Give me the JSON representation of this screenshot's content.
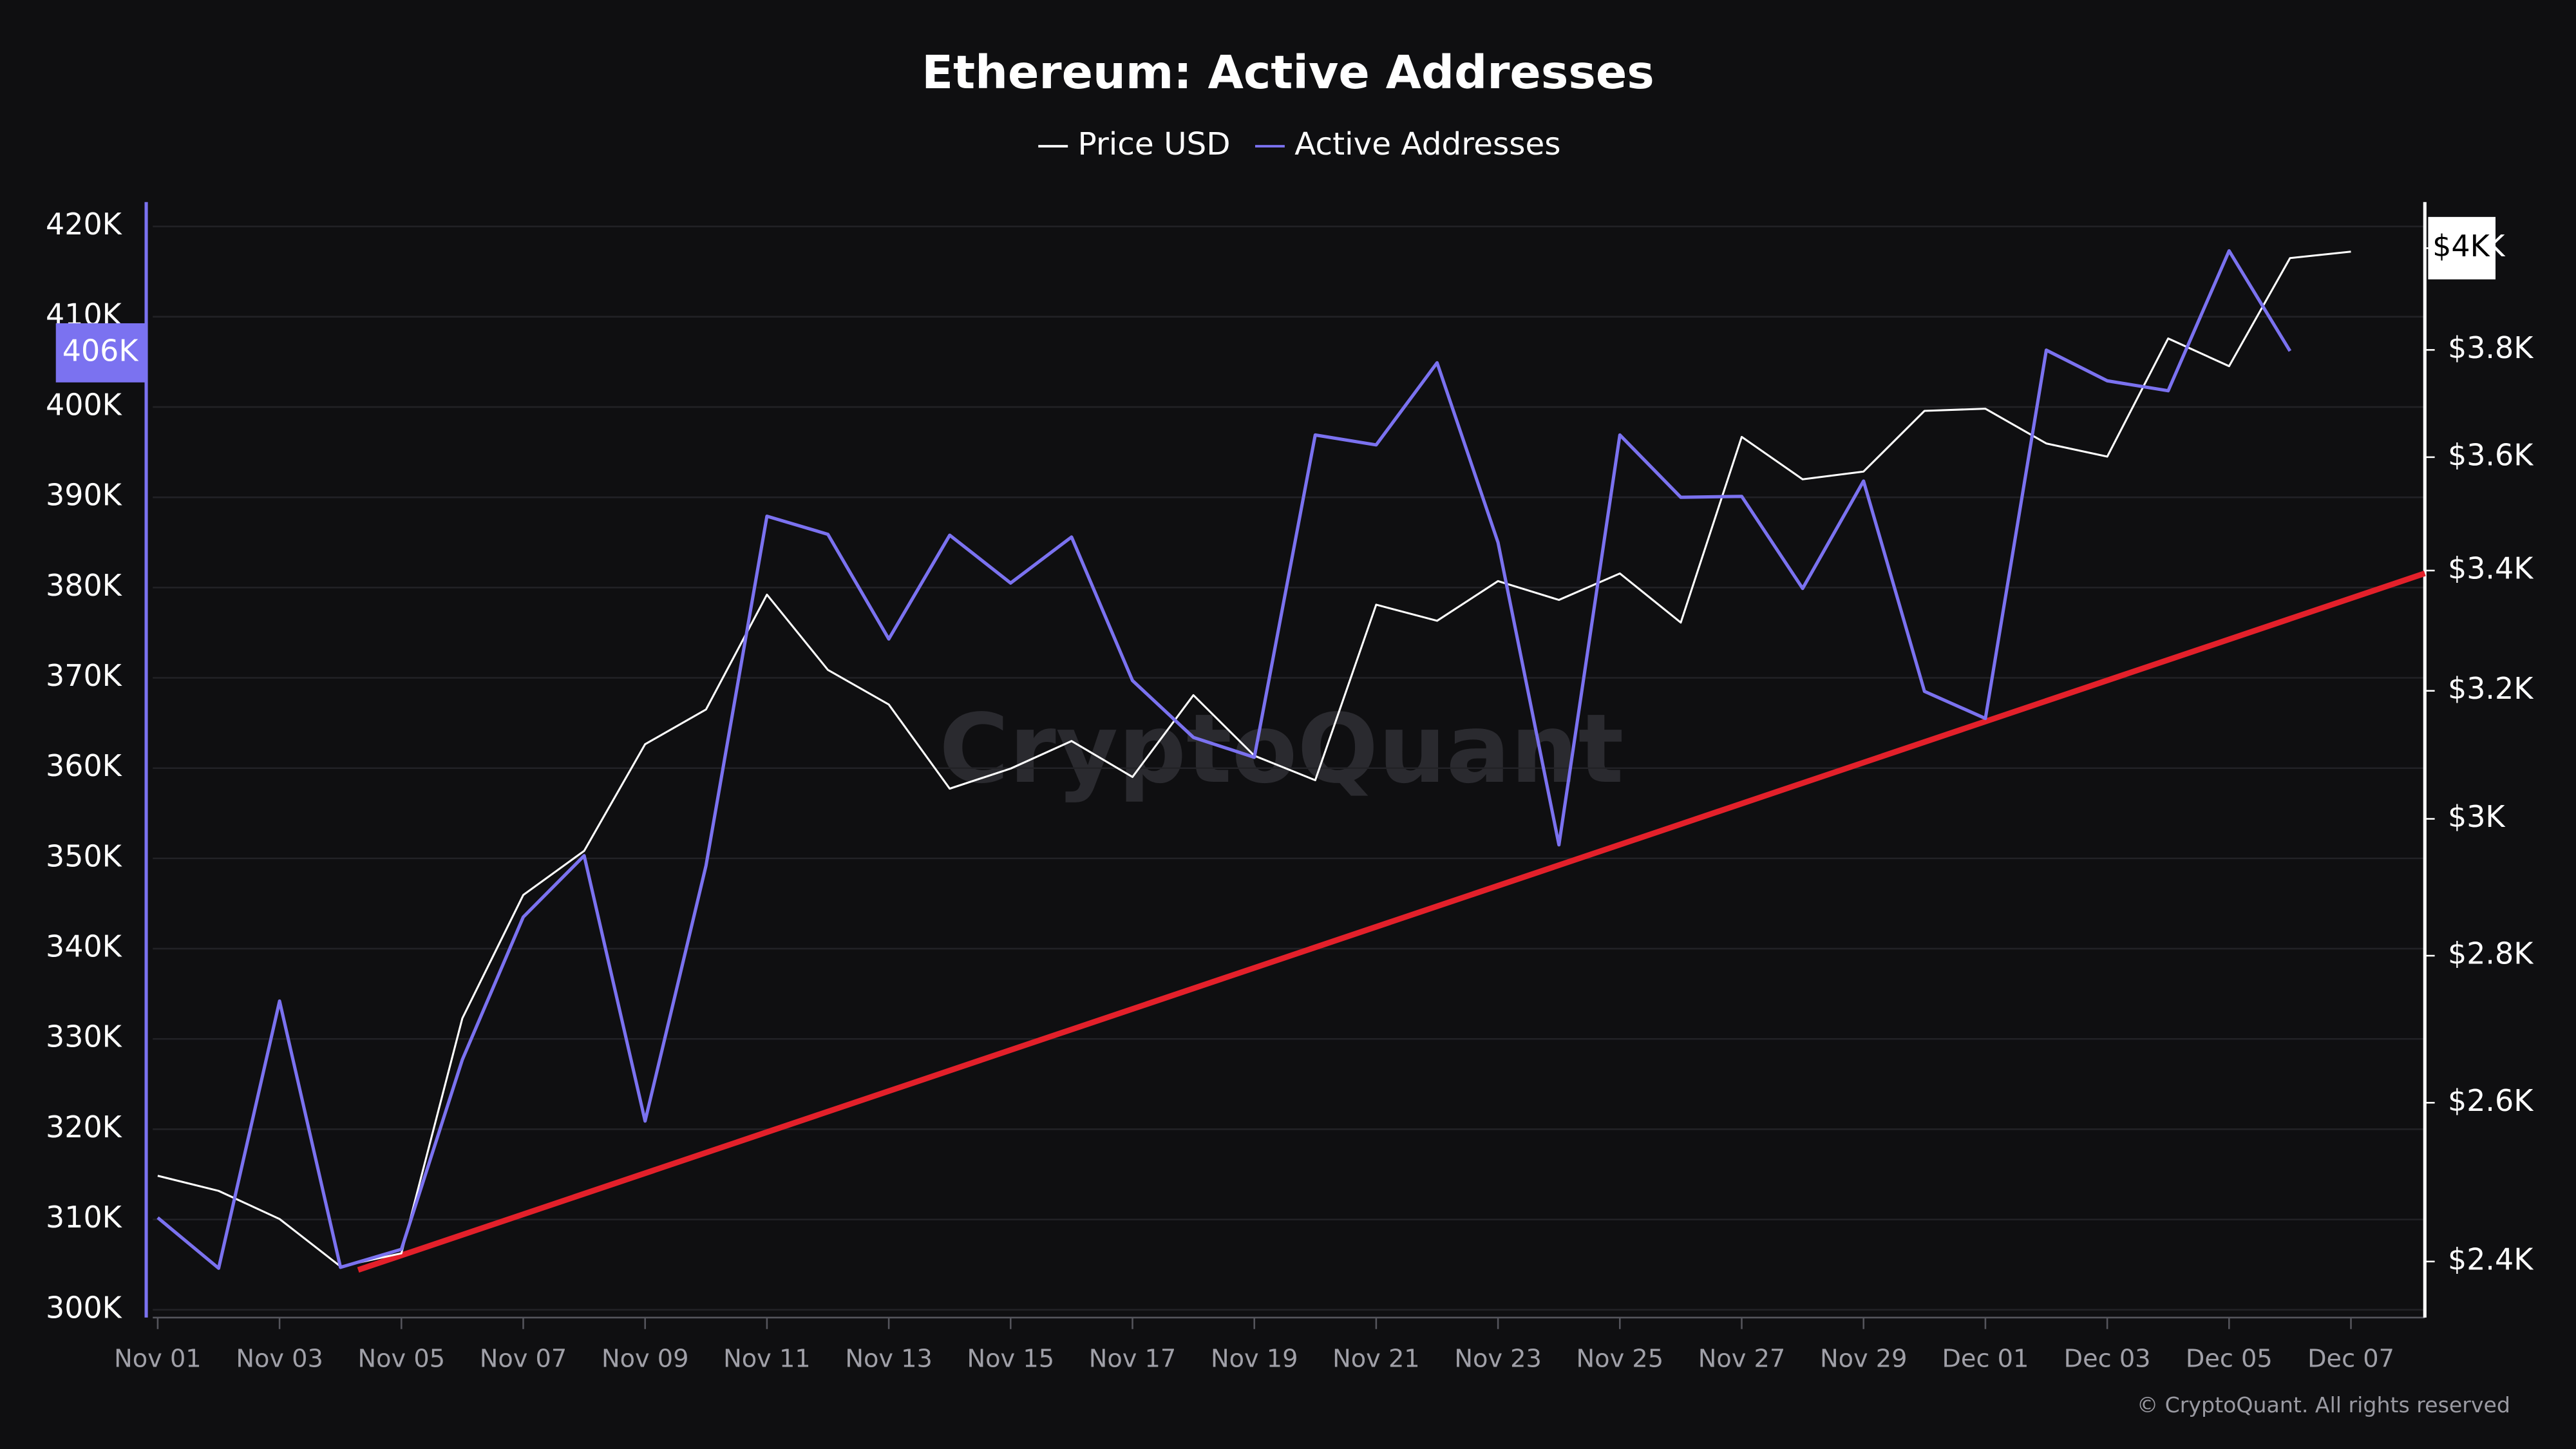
{
  "chart_data": {
    "type": "line",
    "title": "Ethereum: Active Addresses",
    "watermark": "CryptoQuant",
    "footer": "© CryptoQuant. All rights reserved",
    "categories": [
      "Nov 01",
      null,
      "Nov 03",
      null,
      "Nov 05",
      null,
      "Nov 07",
      null,
      "Nov 09",
      null,
      "Nov 11",
      null,
      "Nov 13",
      null,
      "Nov 15",
      null,
      "Nov 17",
      null,
      "Nov 19",
      null,
      "Nov 21",
      null,
      "Nov 23",
      null,
      "Nov 25",
      null,
      "Nov 27",
      null,
      "Nov 29",
      null,
      "Dec 01",
      null,
      "Dec 03",
      null,
      "Dec 05",
      null,
      "Dec 07"
    ],
    "series": [
      {
        "name": "Price USD",
        "color": "#ffffff",
        "axis": "y2",
        "values": [
          2506,
          2487,
          2452,
          2394,
          2410,
          2713,
          2887,
          2952,
          3115,
          3170,
          3359,
          3234,
          3178,
          3046,
          3077,
          3120,
          3064,
          3193,
          3097,
          3059,
          3342,
          3315,
          3382,
          3350,
          3395,
          3312,
          3637,
          3560,
          3574,
          3685,
          3689,
          3625,
          3601,
          3822,
          3769,
          3980,
          3993
        ]
      },
      {
        "name": "Active Addresses",
        "color": "#7b72f0",
        "values": [
          310200,
          304600,
          334200,
          304700,
          306700,
          327700,
          343500,
          350300,
          320900,
          349200,
          387900,
          385900,
          374300,
          385800,
          380500,
          385600,
          369700,
          363400,
          361200,
          396900,
          395800,
          404900,
          385000,
          351500,
          396900,
          390000,
          390100,
          379900,
          391800,
          368500,
          365500,
          406300,
          402900,
          401800,
          417300,
          406200,
          null
        ]
      }
    ],
    "ylim": [
      299500,
      422700
    ],
    "yticks": [
      {
        "value": 300000,
        "label": "300K"
      },
      {
        "value": 310000,
        "label": "310K"
      },
      {
        "value": 320000,
        "label": "320K"
      },
      {
        "value": 330000,
        "label": "330K"
      },
      {
        "value": 340000,
        "label": "340K"
      },
      {
        "value": 350000,
        "label": "350K"
      },
      {
        "value": 360000,
        "label": "360K"
      },
      {
        "value": 370000,
        "label": "370K"
      },
      {
        "value": 380000,
        "label": "380K"
      },
      {
        "value": 390000,
        "label": "390K"
      },
      {
        "value": 400000,
        "label": "400K"
      },
      {
        "value": 410000,
        "label": "410K"
      },
      {
        "value": 420000,
        "label": "420K"
      }
    ],
    "y2lim": [
      2337,
      4094
    ],
    "y2scale": "log",
    "y2ticks": [
      {
        "value": 2400,
        "label": "$2.4K"
      },
      {
        "value": 2600,
        "label": "$2.6K"
      },
      {
        "value": 2800,
        "label": "$2.8K"
      },
      {
        "value": 3000,
        "label": "$3K"
      },
      {
        "value": 3200,
        "label": "$3.2K"
      },
      {
        "value": 3400,
        "label": "$3.4K"
      },
      {
        "value": 3600,
        "label": "$3.6K"
      },
      {
        "value": 3800,
        "label": "$3.8K"
      },
      {
        "value": 4000,
        "label": "$4K"
      }
    ],
    "last_value_labels": [
      {
        "axis": "y",
        "value": 406000,
        "label": "406K"
      },
      {
        "axis": "y2",
        "value": 4000,
        "label": "$4K"
      }
    ],
    "grid": true
  }
}
